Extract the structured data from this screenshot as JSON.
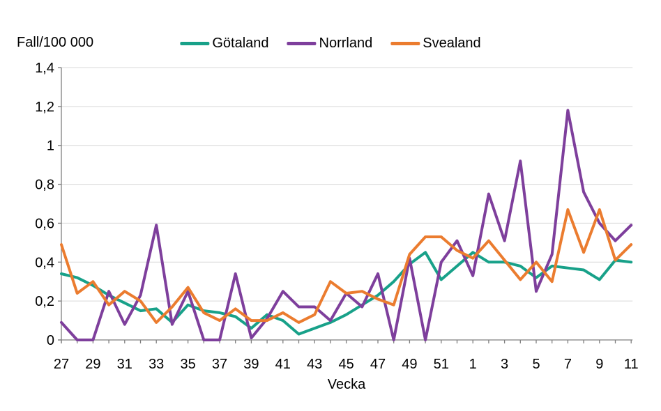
{
  "page": {
    "background": "#ffffff",
    "text_color": "#000000",
    "gridline_color": "#d9d9d9",
    "axis_color": "#7f7f7f"
  },
  "chart_data": {
    "type": "line",
    "title": "",
    "ylabel": "Fall/100 000",
    "xlabel": "Vecka",
    "ylim": [
      0,
      1.4
    ],
    "grid": "horizontal",
    "legend_position": "top-center",
    "categories": [
      27,
      28,
      29,
      30,
      31,
      32,
      33,
      34,
      35,
      36,
      37,
      38,
      39,
      40,
      41,
      42,
      43,
      44,
      45,
      46,
      47,
      48,
      49,
      50,
      51,
      52,
      1,
      2,
      3,
      4,
      5,
      6,
      7,
      8,
      9,
      10,
      11
    ],
    "x_tick_labels_shown": [
      "27",
      "29",
      "31",
      "33",
      "35",
      "37",
      "39",
      "41",
      "43",
      "45",
      "47",
      "49",
      "51",
      "1",
      "3",
      "5",
      "7",
      "9",
      "11"
    ],
    "y_ticks": [
      "0",
      "0,2",
      "0,4",
      "0,6",
      "0,8",
      "1",
      "1,2",
      "1,4"
    ],
    "series": [
      {
        "name": "Götaland",
        "id": "gotaland",
        "color": "#18A189",
        "values": [
          0.34,
          0.32,
          0.28,
          0.23,
          0.19,
          0.15,
          0.16,
          0.09,
          0.18,
          0.15,
          0.14,
          0.12,
          0.06,
          0.13,
          0.1,
          0.03,
          0.06,
          0.09,
          0.13,
          0.18,
          0.23,
          0.3,
          0.39,
          0.45,
          0.31,
          0.38,
          0.45,
          0.4,
          0.4,
          0.38,
          0.32,
          0.38,
          0.37,
          0.36,
          0.31,
          0.41,
          0.4
        ]
      },
      {
        "name": "Norrland",
        "id": "norrland",
        "color": "#7E3F9C",
        "values": [
          0.09,
          0.0,
          0.0,
          0.25,
          0.08,
          0.23,
          0.59,
          0.08,
          0.25,
          0.0,
          0.0,
          0.34,
          0.01,
          0.11,
          0.25,
          0.17,
          0.17,
          0.1,
          0.24,
          0.17,
          0.34,
          0.0,
          0.42,
          0.0,
          0.4,
          0.51,
          0.33,
          0.75,
          0.51,
          0.92,
          0.25,
          0.44,
          1.18,
          0.76,
          0.6,
          0.51,
          0.59
        ]
      },
      {
        "name": "Svealand",
        "id": "svealand",
        "color": "#EB7C2F",
        "values": [
          0.49,
          0.24,
          0.3,
          0.18,
          0.25,
          0.2,
          0.09,
          0.17,
          0.27,
          0.14,
          0.1,
          0.16,
          0.1,
          0.1,
          0.14,
          0.09,
          0.13,
          0.3,
          0.24,
          0.25,
          0.21,
          0.18,
          0.44,
          0.53,
          0.53,
          0.46,
          0.42,
          0.51,
          0.41,
          0.31,
          0.4,
          0.3,
          0.67,
          0.45,
          0.67,
          0.41,
          0.49
        ]
      }
    ]
  }
}
